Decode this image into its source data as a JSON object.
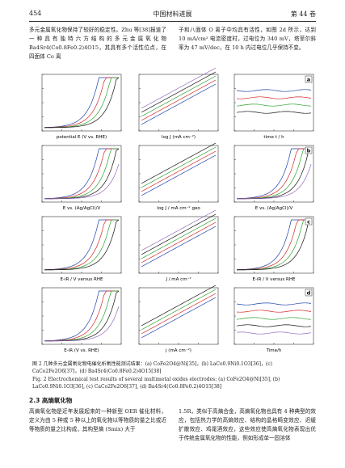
{
  "header": {
    "page": "454",
    "journal": "中国材料进展",
    "volume": "第 44 卷"
  },
  "intro": {
    "left": "多元金属氧化物保持了较好的稳定性。Zhu 等[38]报道了一种具有独特六方结构的多元金属氧化物 Ba4Sr4(Co0.8Fe0.2)4O15，其具有多个活性位点，在四面体 Co 离",
    "right": "子和八面体 O 离子中均具有活性，如图 2d 所示，达到 10 mA/cm² 电流密度时，过电位为 340 mV，塔菲尔斜率为 47 mV/dec，在 10 h 内过电位几乎保持不变。"
  },
  "figure": {
    "rows": [
      {
        "label": "a",
        "panels": [
          {
            "xlabel": "potential E (V vs. RHE)"
          },
          {
            "xlabel": "log J (mA cm⁻²)"
          },
          {
            "xlabel": "time t / h"
          }
        ]
      },
      {
        "label": "b",
        "panels": [
          {
            "xlabel": "E vs. (Ag/AgCl)/V"
          },
          {
            "xlabel": "log J / mA cm⁻² geo"
          },
          {
            "xlabel": "E vs. (Ag/AgCl)/V"
          }
        ]
      },
      {
        "label": "c",
        "panels": [
          {
            "xlabel": "E-iR / V versus RHE"
          },
          {
            "xlabel": "J / mA cm⁻²"
          },
          {
            "xlabel": "E-iR / V versus RHE"
          }
        ]
      },
      {
        "label": "d",
        "panels": [
          {
            "xlabel": "E-iR (V vs. RHE)"
          },
          {
            "xlabel": "j (mA cm⁻²)"
          },
          {
            "xlabel": "Time/h"
          }
        ]
      }
    ],
    "caption_cn": "图 2  几种多元金属氧化物电催化析氧性能测试结果：(a) CoFe2O4@Ni[35]，(b) LaCo0.9Ni0.1O3[36]，(c) CaCo2Fe2O6[37]，(d) Ba4Sr4(Co0.8Fe0.2)4O15[38]",
    "caption_en": "Fig. 2  Electrochemical test results of several multimetal oxides electrodes: (a) CoFe2O4@Ni[35], (b) LaCo0.9Ni0.1O3[36], (c) CaCo2Fe2O6[37], (d) Ba4Sr4(Co0.8Fe0.2)4O15[38]"
  },
  "section": {
    "title": "2.3  高熵氧化物",
    "left": "高熵氧化物是近年发展起来的一种新型 OER 催化材料，定义为由 5 种或 5 种以上的氧化物以等物质的量之比或近等物质的量之比构成，其构型熵 (Smix) 大于",
    "right": "1.5R，类似于高熵合金，高熵氧化物也具有 4 种典型的效应，包括热力学的高熵效应、结构的晶格畸变效应、迟缓扩散效应、鸡尾酒效应，这些效应使高熵氧化物表现出优于传统金属氧化物的性能，例如形成单一固溶体"
  }
}
